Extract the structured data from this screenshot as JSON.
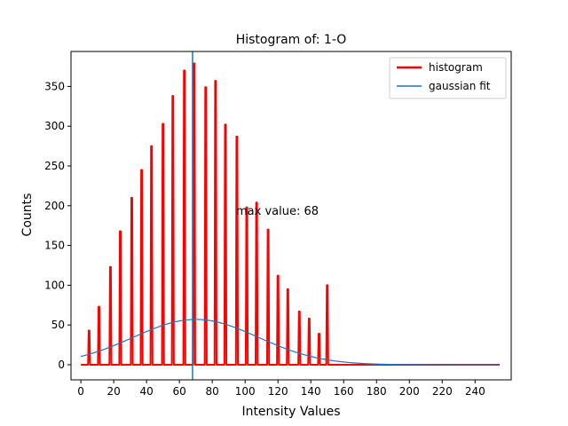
{
  "chart_data": {
    "type": "line",
    "title": "Histogram of: 1-O",
    "xlabel": "Intensity Values",
    "ylabel": "Counts",
    "xlim": [
      -6,
      262
    ],
    "ylim": [
      -19,
      394
    ],
    "xticks": [
      0,
      20,
      40,
      60,
      80,
      100,
      120,
      140,
      160,
      180,
      200,
      220,
      240
    ],
    "yticks": [
      0,
      50,
      100,
      150,
      200,
      250,
      300,
      350
    ],
    "grid": false,
    "legend_position": "top-right",
    "annotation": "max value: 68",
    "max_value_line": 68,
    "series": [
      {
        "name": "histogram",
        "color": "#ff0000",
        "spikes": [
          {
            "x": 5,
            "y": 43
          },
          {
            "x": 11,
            "y": 73
          },
          {
            "x": 18,
            "y": 123
          },
          {
            "x": 24,
            "y": 168
          },
          {
            "x": 31,
            "y": 210
          },
          {
            "x": 37,
            "y": 245
          },
          {
            "x": 43,
            "y": 275
          },
          {
            "x": 50,
            "y": 303
          },
          {
            "x": 56,
            "y": 338
          },
          {
            "x": 63,
            "y": 370
          },
          {
            "x": 69,
            "y": 379
          },
          {
            "x": 76,
            "y": 349
          },
          {
            "x": 82,
            "y": 357
          },
          {
            "x": 88,
            "y": 302
          },
          {
            "x": 95,
            "y": 287
          },
          {
            "x": 101,
            "y": 198
          },
          {
            "x": 107,
            "y": 204
          },
          {
            "x": 114,
            "y": 170
          },
          {
            "x": 120,
            "y": 112
          },
          {
            "x": 126,
            "y": 95
          },
          {
            "x": 133,
            "y": 67
          },
          {
            "x": 139,
            "y": 58
          },
          {
            "x": 145,
            "y": 39
          },
          {
            "x": 150,
            "y": 100
          }
        ],
        "x_end": 255
      },
      {
        "name": "gaussian fit",
        "color": "#1f77b4",
        "amplitude": 57,
        "mean": 70,
        "sigma": 38,
        "x_range": [
          0,
          255
        ]
      }
    ]
  }
}
